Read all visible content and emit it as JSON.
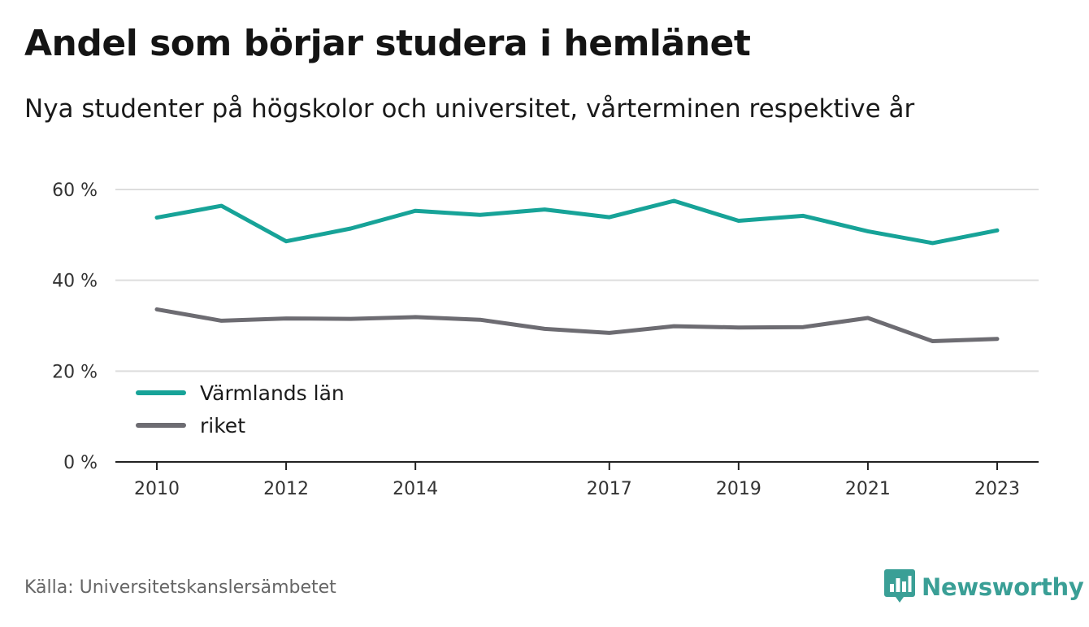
{
  "header": {
    "title": "Andel som börjar studera i hemlänet",
    "subtitle": "Nya studenter på högskolor och universitet, vårterminen respektive år"
  },
  "footer": {
    "source": "Källa: Universitetskanslersämbetet",
    "brand": "Newsworthy"
  },
  "colors": {
    "primary_series": "#17a398",
    "secondary_series": "#6d6c72",
    "brand": "#3a9f96",
    "gridline": "#dddddd",
    "axis": "#222222"
  },
  "icons": {
    "brand_logo": "newsworthy-logo-icon"
  },
  "chart_data": {
    "type": "line",
    "title": "Andel som börjar studera i hemlänet",
    "subtitle": "Nya studenter på högskolor och universitet, vårterminen respektive år",
    "x": [
      2010,
      2011,
      2012,
      2013,
      2014,
      2015,
      2016,
      2017,
      2018,
      2019,
      2020,
      2021,
      2022,
      2023
    ],
    "x_ticks": [
      2010,
      2012,
      2014,
      2017,
      2019,
      2021,
      2023
    ],
    "x_tick_labels": [
      "2010",
      "2012",
      "2014",
      "2017",
      "2019",
      "2021",
      "2023"
    ],
    "y_ticks": [
      0,
      20,
      40,
      60
    ],
    "y_tick_labels": [
      "0 %",
      "20 %",
      "40 %",
      "60 %"
    ],
    "ylim": [
      0,
      60
    ],
    "xlabel": "",
    "ylabel": "",
    "grid": true,
    "legend_position": "bottom-left",
    "series": [
      {
        "name": "Värmlands län",
        "color": "#17a398",
        "values": [
          53.8,
          56.4,
          48.6,
          51.4,
          55.3,
          54.4,
          55.6,
          53.9,
          57.5,
          53.1,
          54.2,
          50.8,
          48.2,
          51.0
        ]
      },
      {
        "name": "riket",
        "color": "#6d6c72",
        "values": [
          33.6,
          31.1,
          31.6,
          31.5,
          31.9,
          31.3,
          29.3,
          28.4,
          29.9,
          29.6,
          29.7,
          31.7,
          26.6,
          27.1
        ]
      }
    ]
  }
}
